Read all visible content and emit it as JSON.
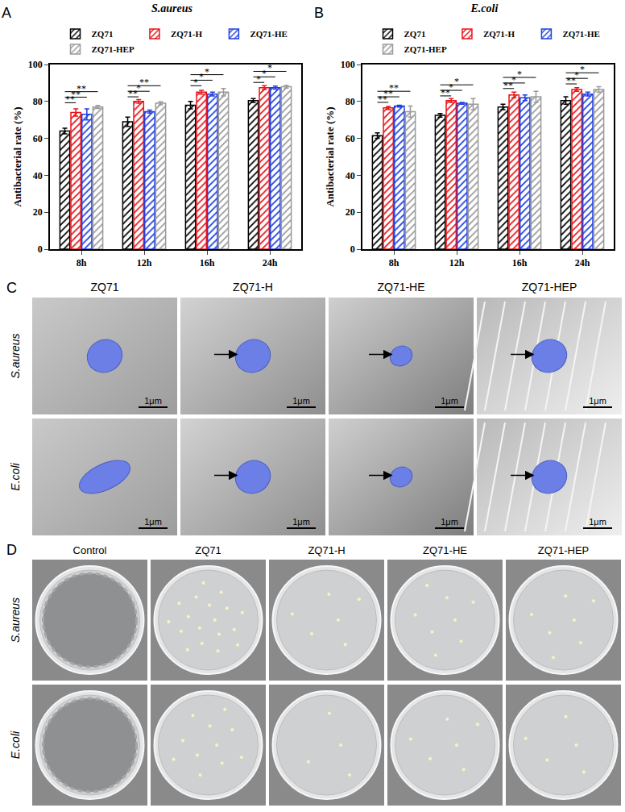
{
  "chart_data": [
    {
      "panel": "A",
      "type": "bar",
      "title": "S.aureus",
      "categories": [
        "8h",
        "12h",
        "16h",
        "24h"
      ],
      "y_label": "Antibacterial rate (%)",
      "ylim": [
        0,
        100
      ],
      "yticks": [
        0,
        20,
        40,
        60,
        80,
        100
      ],
      "legend": "top",
      "series": [
        {
          "name": "ZQ71",
          "color": "#000000",
          "values": [
            64,
            69,
            78,
            80.5
          ],
          "errors": [
            1.5,
            2.5,
            2,
            1
          ]
        },
        {
          "name": "ZQ71-H",
          "color": "#e8141a",
          "values": [
            74,
            80,
            85,
            87.5
          ],
          "errors": [
            2,
            1,
            1,
            1
          ]
        },
        {
          "name": "ZQ71-HE",
          "color": "#1f3fe0",
          "values": [
            73,
            74.5,
            84,
            87.5
          ],
          "errors": [
            3,
            0.8,
            1,
            0.8
          ]
        },
        {
          "name": "ZQ71-HEP",
          "color": "#9a9a9a",
          "values": [
            77,
            79,
            85,
            88
          ],
          "errors": [
            0.8,
            0.8,
            2,
            0.8
          ]
        }
      ],
      "significance": [
        {
          "category": "8h",
          "from": "ZQ71",
          "to": "ZQ71-H",
          "label": "**"
        },
        {
          "category": "8h",
          "from": "ZQ71",
          "to": "ZQ71-HE",
          "label": "**"
        },
        {
          "category": "8h",
          "from": "ZQ71",
          "to": "ZQ71-HEP",
          "label": "**"
        },
        {
          "category": "12h",
          "from": "ZQ71",
          "to": "ZQ71-H",
          "label": "**"
        },
        {
          "category": "12h",
          "from": "ZQ71",
          "to": "ZQ71-HE",
          "label": "*"
        },
        {
          "category": "12h",
          "from": "ZQ71",
          "to": "ZQ71-HEP",
          "label": "**"
        },
        {
          "category": "16h",
          "from": "ZQ71",
          "to": "ZQ71-H",
          "label": "*"
        },
        {
          "category": "16h",
          "from": "ZQ71",
          "to": "ZQ71-HE",
          "label": "*"
        },
        {
          "category": "16h",
          "from": "ZQ71",
          "to": "ZQ71-HEP",
          "label": "*"
        },
        {
          "category": "24h",
          "from": "ZQ71",
          "to": "ZQ71-H",
          "label": "*"
        },
        {
          "category": "24h",
          "from": "ZQ71",
          "to": "ZQ71-HE",
          "label": "*"
        },
        {
          "category": "24h",
          "from": "ZQ71",
          "to": "ZQ71-HEP",
          "label": "*"
        }
      ]
    },
    {
      "panel": "B",
      "type": "bar",
      "title": "E.coli",
      "categories": [
        "8h",
        "12h",
        "16h",
        "24h"
      ],
      "y_label": "Antibacterial rate (%)",
      "ylim": [
        0,
        100
      ],
      "yticks": [
        0,
        20,
        40,
        60,
        80,
        100
      ],
      "legend": "top",
      "series": [
        {
          "name": "ZQ71",
          "color": "#000000",
          "values": [
            61.5,
            72.5,
            77,
            80.5
          ],
          "errors": [
            1.5,
            1,
            1.5,
            2
          ]
        },
        {
          "name": "ZQ71-H",
          "color": "#e8141a",
          "values": [
            76.5,
            80.5,
            83.5,
            86.5
          ],
          "errors": [
            0.8,
            1,
            1.5,
            1
          ]
        },
        {
          "name": "ZQ71-HE",
          "color": "#1f3fe0",
          "values": [
            77.5,
            79,
            82,
            84
          ],
          "errors": [
            0.5,
            0.5,
            1.5,
            1
          ]
        },
        {
          "name": "ZQ71-HEP",
          "color": "#9a9a9a",
          "values": [
            74.5,
            78.5,
            82.5,
            86.5
          ],
          "errors": [
            3,
            3,
            3,
            1.5
          ]
        }
      ],
      "significance": [
        {
          "category": "8h",
          "from": "ZQ71",
          "to": "ZQ71-H",
          "label": "**"
        },
        {
          "category": "8h",
          "from": "ZQ71",
          "to": "ZQ71-HE",
          "label": "**"
        },
        {
          "category": "8h",
          "from": "ZQ71",
          "to": "ZQ71-HEP",
          "label": "**"
        },
        {
          "category": "12h",
          "from": "ZQ71",
          "to": "ZQ71-H",
          "label": "**"
        },
        {
          "category": "12h",
          "from": "ZQ71",
          "to": "ZQ71-HE",
          "label": "*"
        },
        {
          "category": "12h",
          "from": "ZQ71",
          "to": "ZQ71-HEP",
          "label": "*"
        },
        {
          "category": "16h",
          "from": "ZQ71",
          "to": "ZQ71-H",
          "label": "**"
        },
        {
          "category": "16h",
          "from": "ZQ71",
          "to": "ZQ71-HE",
          "label": "*"
        },
        {
          "category": "16h",
          "from": "ZQ71",
          "to": "ZQ71-HEP",
          "label": "*"
        },
        {
          "category": "24h",
          "from": "ZQ71",
          "to": "ZQ71-H",
          "label": "**"
        },
        {
          "category": "24h",
          "from": "ZQ71",
          "to": "ZQ71-HE",
          "label": "*"
        },
        {
          "category": "24h",
          "from": "ZQ71",
          "to": "ZQ71-HEP",
          "label": "*"
        }
      ]
    }
  ],
  "image_panels": [
    {
      "panel": "C",
      "columns": [
        "ZQ71",
        "ZQ71-H",
        "ZQ71-HE",
        "ZQ71-HEP"
      ],
      "rows": [
        "S.aureus",
        "E.coli"
      ],
      "scale_bar": "1μm"
    },
    {
      "panel": "D",
      "columns": [
        "Control",
        "ZQ71",
        "ZQ71-H",
        "ZQ71-HE",
        "ZQ71-HEP"
      ],
      "rows": [
        "S.aureus",
        "E.coli"
      ],
      "colonies": [
        [
          null,
          18,
          6,
          8,
          7
        ],
        [
          null,
          11,
          4,
          6,
          5
        ]
      ]
    }
  ]
}
